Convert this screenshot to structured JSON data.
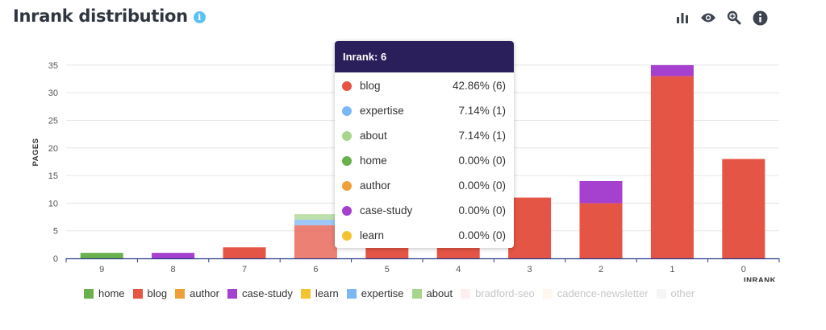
{
  "header": {
    "title": "Inrank distribution",
    "info_glyph": "i"
  },
  "toolbar": [
    {
      "name": "bar-chart-icon"
    },
    {
      "name": "eye-icon"
    },
    {
      "name": "zoom-icon"
    },
    {
      "name": "info-icon"
    }
  ],
  "colors": {
    "home": "#6ab04c",
    "blog": "#e55545",
    "author": "#f0a038",
    "case-study": "#a640cf",
    "learn": "#f4c430",
    "expertise": "#7cb6f4",
    "about": "#a8d58d",
    "bradford-seo": "#f8c9c6",
    "cadence-newsletter": "#fbe4c4",
    "other": "#dddddd",
    "axis": "#2a3a8a",
    "grid": "#e6e6e6",
    "tooltip_header": "#2a1f5a"
  },
  "chart_data": {
    "type": "bar",
    "stacked": true,
    "title": "Inrank distribution",
    "xlabel": "INRANK",
    "ylabel": "PAGES",
    "ylim": [
      0,
      36
    ],
    "yticks": [
      0,
      5,
      10,
      15,
      20,
      25,
      30,
      35
    ],
    "categories": [
      "9",
      "8",
      "7",
      "6",
      "5",
      "4",
      "3",
      "2",
      "1",
      "0"
    ],
    "series": [
      {
        "name": "home",
        "values": [
          1,
          0,
          0,
          0,
          0,
          0,
          0,
          0,
          0,
          0
        ]
      },
      {
        "name": "blog",
        "values": [
          0,
          0,
          2,
          6,
          2,
          2,
          11,
          10,
          33,
          18
        ]
      },
      {
        "name": "author",
        "values": [
          0,
          0,
          0,
          0,
          0,
          0,
          0,
          0,
          0,
          0
        ]
      },
      {
        "name": "case-study",
        "values": [
          0,
          1,
          0,
          0,
          0,
          0,
          0,
          4,
          2,
          0
        ]
      },
      {
        "name": "learn",
        "values": [
          0,
          0,
          0,
          0,
          0,
          0,
          0,
          0,
          0,
          0
        ]
      },
      {
        "name": "expertise",
        "values": [
          0,
          0,
          0,
          1,
          0,
          0,
          0,
          0,
          0,
          0
        ]
      },
      {
        "name": "about",
        "values": [
          0,
          0,
          0,
          1,
          0,
          0,
          0,
          0,
          0,
          0
        ]
      }
    ],
    "highlighted_category": "6",
    "legend_position": "bottom",
    "grid": true
  },
  "legend": [
    {
      "label": "home",
      "key": "home",
      "enabled": true
    },
    {
      "label": "blog",
      "key": "blog",
      "enabled": true
    },
    {
      "label": "author",
      "key": "author",
      "enabled": true
    },
    {
      "label": "case-study",
      "key": "case-study",
      "enabled": true
    },
    {
      "label": "learn",
      "key": "learn",
      "enabled": true
    },
    {
      "label": "expertise",
      "key": "expertise",
      "enabled": true
    },
    {
      "label": "about",
      "key": "about",
      "enabled": true
    },
    {
      "label": "bradford-seo",
      "key": "bradford-seo",
      "enabled": false
    },
    {
      "label": "cadence-newsletter",
      "key": "cadence-newsletter",
      "enabled": false
    },
    {
      "label": "other",
      "key": "other",
      "enabled": false
    }
  ],
  "tooltip": {
    "title": "Inrank: 6",
    "rows": [
      {
        "label": "blog",
        "key": "blog",
        "value": "42.86% (6)"
      },
      {
        "label": "expertise",
        "key": "expertise",
        "value": "7.14% (1)"
      },
      {
        "label": "about",
        "key": "about",
        "value": "7.14% (1)"
      },
      {
        "label": "home",
        "key": "home",
        "value": "0.00% (0)"
      },
      {
        "label": "author",
        "key": "author",
        "value": "0.00% (0)"
      },
      {
        "label": "case-study",
        "key": "case-study",
        "value": "0.00% (0)"
      },
      {
        "label": "learn",
        "key": "learn",
        "value": "0.00% (0)"
      }
    ]
  }
}
